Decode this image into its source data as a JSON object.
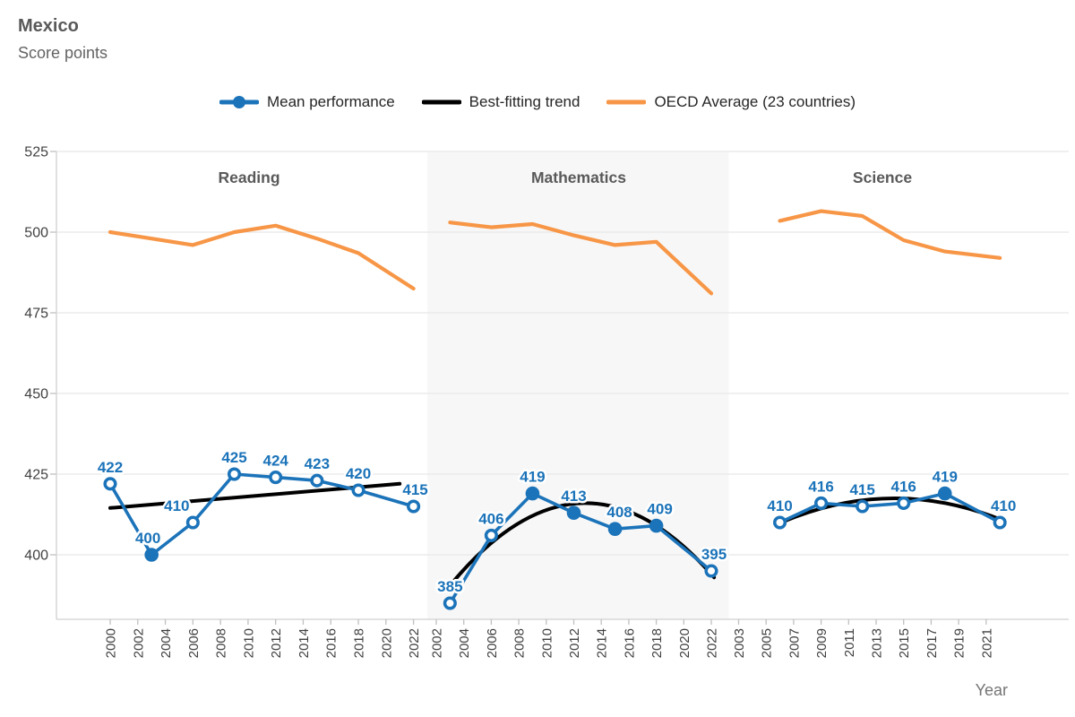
{
  "header": {
    "title": "Mexico",
    "subtitle": "Score points"
  },
  "legend": {
    "items": [
      {
        "label": "Mean performance",
        "swatch": "line-dot",
        "color": "#1b73b9"
      },
      {
        "label": "Best-fitting trend",
        "swatch": "line",
        "color": "#000000"
      },
      {
        "label": "OECD Average (23 countries)",
        "swatch": "line",
        "color": "#f79646"
      }
    ]
  },
  "colors": {
    "mean": "#1b73b9",
    "trend": "#000000",
    "oecd": "#f79646",
    "shade": "#f7f7f7",
    "grid": "#e8e8e8",
    "axis": "#d0d0d0",
    "tick": "#c0c0c0"
  },
  "chart_data": {
    "type": "line",
    "title": "Mexico",
    "ylabel": "Score points",
    "xlabel": "Year",
    "ylim": [
      380,
      525
    ],
    "yticks": [
      525,
      500,
      475,
      450,
      425,
      400
    ],
    "grid": "horizontal",
    "legend_position": "top",
    "panels": [
      {
        "title": "Reading",
        "shaded": false,
        "x_ticks": [
          2000,
          2002,
          2004,
          2006,
          2008,
          2010,
          2012,
          2014,
          2016,
          2018,
          2020,
          2022
        ],
        "series": {
          "mean_performance": {
            "years": [
              2000,
              2003,
              2006,
              2009,
              2012,
              2015,
              2018,
              2022
            ],
            "values": [
              422,
              400,
              410,
              425,
              424,
              423,
              420,
              415
            ],
            "filled_markers": [
              false,
              true,
              false,
              false,
              false,
              false,
              false,
              false
            ],
            "label_dx": [
              0,
              -4,
              -18,
              0,
              0,
              0,
              0,
              2
            ]
          },
          "oecd_average": {
            "years": [
              2000,
              2003,
              2006,
              2009,
              2012,
              2015,
              2018,
              2022
            ],
            "values": [
              500,
              498,
              496,
              500,
              502,
              498,
              493.5,
              482.5
            ]
          },
          "best_fitting_trend": {
            "shape": "linear",
            "start_year": 2000,
            "start_value": 414.5,
            "end_year": 2021,
            "end_value": 422
          }
        }
      },
      {
        "title": "Mathematics",
        "shaded": true,
        "x_ticks": [
          2002,
          2004,
          2006,
          2008,
          2010,
          2012,
          2014,
          2016,
          2018,
          2020,
          2022
        ],
        "series": {
          "mean_performance": {
            "years": [
              2003,
              2006,
              2009,
              2012,
              2015,
              2018,
              2022
            ],
            "values": [
              385,
              406,
              419,
              413,
              408,
              409,
              395
            ],
            "filled_markers": [
              false,
              false,
              true,
              true,
              true,
              true,
              false
            ],
            "label_dx": [
              0,
              0,
              0,
              0,
              5,
              4,
              3
            ]
          },
          "oecd_average": {
            "years": [
              2003,
              2006,
              2009,
              2012,
              2015,
              2018,
              2022
            ],
            "values": [
              503,
              501.5,
              502.5,
              499,
              496,
              497,
              481
            ]
          },
          "best_fitting_trend": {
            "shape": "quadratic",
            "start_year": 2003.3,
            "start_value": 392,
            "end_year": 2022.2,
            "end_value": 393,
            "apex_value": 416
          }
        }
      },
      {
        "title": "Science",
        "shaded": false,
        "x_ticks": [
          2003,
          2005,
          2007,
          2009,
          2011,
          2013,
          2015,
          2017,
          2019,
          2021
        ],
        "series": {
          "mean_performance": {
            "years": [
              2006,
              2009,
              2012,
              2015,
              2018,
              2022
            ],
            "values": [
              410,
              416,
              415,
              416,
              419,
              410
            ],
            "filled_markers": [
              false,
              false,
              false,
              false,
              true,
              false
            ],
            "label_dx": [
              0,
              0,
              0,
              0,
              0,
              4
            ]
          },
          "oecd_average": {
            "years": [
              2006,
              2009,
              2012,
              2015,
              2018,
              2022
            ],
            "values": [
              503.5,
              506.5,
              505,
              497.5,
              494,
              492
            ]
          },
          "best_fitting_trend": {
            "shape": "quadratic",
            "start_year": 2006.1,
            "start_value": 410,
            "end_year": 2022.3,
            "end_value": 410.5,
            "apex_value": 417.5
          }
        }
      }
    ]
  }
}
